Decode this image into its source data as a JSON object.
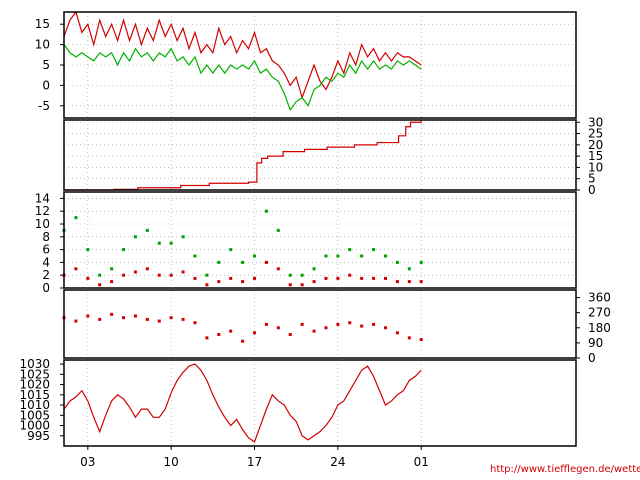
{
  "source_url": "http://www.tiefflegen.de/wetter/",
  "x_axis": {
    "range_days": [
      0,
      43
    ],
    "tick_labels": [
      "03",
      "10",
      "17",
      "24",
      "01"
    ],
    "tick_days": [
      2,
      9,
      16,
      23,
      30
    ]
  },
  "colors": {
    "red": "#d00000",
    "green": "#00b000",
    "grid": "#999999"
  },
  "chart_data": [
    {
      "type": "line",
      "ylim": [
        -8,
        18
      ],
      "y_ticks": [
        -5,
        0,
        5,
        10,
        15
      ],
      "axis_side": "left",
      "grid": true,
      "series": [
        {
          "color": "#d00000",
          "x": [
            0,
            0.5,
            1,
            1.5,
            2,
            2.5,
            3,
            3.5,
            4,
            4.5,
            5,
            5.5,
            6,
            6.5,
            7,
            7.5,
            8,
            8.5,
            9,
            9.5,
            10,
            10.5,
            11,
            11.5,
            12,
            12.5,
            13,
            13.5,
            14,
            14.5,
            15,
            15.5,
            16,
            16.5,
            17,
            17.5,
            18,
            18.5,
            19,
            19.5,
            20,
            20.5,
            21,
            21.5,
            22,
            22.5,
            23,
            23.5,
            24,
            24.5,
            25,
            25.5,
            26,
            26.5,
            27,
            27.5,
            28,
            28.5,
            29,
            29.5,
            30
          ],
          "values": [
            12,
            16,
            18,
            13,
            15,
            10,
            16,
            12,
            15,
            11,
            16,
            11,
            15,
            10,
            14,
            11,
            16,
            12,
            15,
            11,
            14,
            9,
            13,
            8,
            10,
            8,
            14,
            10,
            12,
            8,
            11,
            9,
            13,
            8,
            9,
            6,
            5,
            3,
            0,
            2,
            -3,
            1,
            5,
            1,
            -1,
            2,
            6,
            3,
            8,
            5,
            10,
            7,
            9,
            6,
            8,
            6,
            8,
            7,
            7,
            6,
            5
          ]
        },
        {
          "color": "#00b000",
          "x": [
            0,
            0.5,
            1,
            1.5,
            2,
            2.5,
            3,
            3.5,
            4,
            4.5,
            5,
            5.5,
            6,
            6.5,
            7,
            7.5,
            8,
            8.5,
            9,
            9.5,
            10,
            10.5,
            11,
            11.5,
            12,
            12.5,
            13,
            13.5,
            14,
            14.5,
            15,
            15.5,
            16,
            16.5,
            17,
            17.5,
            18,
            18.5,
            19,
            19.5,
            20,
            20.5,
            21,
            21.5,
            22,
            22.5,
            23,
            23.5,
            24,
            24.5,
            25,
            25.5,
            26,
            26.5,
            27,
            27.5,
            28,
            28.5,
            29,
            29.5,
            30
          ],
          "values": [
            10,
            8,
            7,
            8,
            7,
            6,
            8,
            7,
            8,
            5,
            8,
            6,
            9,
            7,
            8,
            6,
            8,
            7,
            9,
            6,
            7,
            5,
            7,
            3,
            5,
            3,
            5,
            3,
            5,
            4,
            5,
            4,
            6,
            3,
            4,
            2,
            1,
            -2,
            -6,
            -4,
            -3,
            -5,
            -1,
            0,
            2,
            1,
            3,
            2,
            5,
            3,
            6,
            4,
            6,
            4,
            5,
            4,
            6,
            5,
            6,
            5,
            4
          ]
        }
      ]
    },
    {
      "type": "line",
      "ylim": [
        0,
        31
      ],
      "y_ticks": [
        0,
        5,
        10,
        15,
        20,
        25,
        30
      ],
      "axis_side": "right",
      "grid": true,
      "series": [
        {
          "color": "#d00000",
          "step": true,
          "x": [
            0,
            4.2,
            6.2,
            9.8,
            12.2,
            15.5,
            16.2,
            16.6,
            17.1,
            18.4,
            20.2,
            22.1,
            24.4,
            26.3,
            28.1,
            28.7,
            29.1,
            30
          ],
          "values": [
            0,
            0.3,
            1,
            2,
            3,
            3.5,
            12,
            14,
            15,
            17,
            18,
            19,
            20,
            21,
            24,
            28,
            30,
            31
          ]
        }
      ]
    },
    {
      "type": "scatter",
      "ylim": [
        0,
        15
      ],
      "y_ticks": [
        0,
        2,
        4,
        6,
        8,
        10,
        12,
        14
      ],
      "axis_side": "left",
      "grid": true,
      "series": [
        {
          "color": "#00a000",
          "x": [
            0,
            1,
            2,
            3,
            4,
            5,
            6,
            7,
            8,
            9,
            10,
            11,
            12,
            13,
            14,
            15,
            16,
            17,
            18,
            19,
            20,
            21,
            22,
            23,
            24,
            25,
            26,
            27,
            28,
            29,
            30
          ],
          "values": [
            9,
            11,
            6,
            2,
            3,
            6,
            8,
            9,
            7,
            7,
            8,
            5,
            2,
            4,
            6,
            4,
            5,
            12,
            9,
            2,
            2,
            3,
            5,
            5,
            6,
            5,
            6,
            5,
            4,
            3,
            4
          ]
        },
        {
          "color": "#d00000",
          "x": [
            0,
            1,
            2,
            3,
            4,
            5,
            6,
            7,
            8,
            9,
            10,
            11,
            12,
            13,
            14,
            15,
            16,
            17,
            18,
            19,
            20,
            21,
            22,
            23,
            24,
            25,
            26,
            27,
            28,
            29,
            30
          ],
          "values": [
            2,
            3,
            1.5,
            0.5,
            1,
            2,
            2.5,
            3,
            2,
            2,
            2.5,
            1.5,
            0.5,
            1,
            1.5,
            1,
            1.5,
            4,
            3,
            0.5,
            0.5,
            1,
            1.5,
            1.5,
            2,
            1.5,
            1.5,
            1.5,
            1,
            1,
            1
          ]
        }
      ]
    },
    {
      "type": "scatter",
      "ylim": [
        0,
        405
      ],
      "y_ticks": [
        0,
        90,
        180,
        270,
        360
      ],
      "axis_side": "right",
      "grid": false,
      "series": [
        {
          "color": "#d00000",
          "x": [
            0,
            1,
            2,
            3,
            4,
            5,
            6,
            7,
            8,
            9,
            10,
            11,
            12,
            13,
            14,
            15,
            16,
            17,
            18,
            19,
            20,
            21,
            22,
            23,
            24,
            25,
            26,
            27,
            28,
            29,
            30
          ],
          "values": [
            240,
            220,
            250,
            230,
            260,
            240,
            250,
            230,
            220,
            240,
            230,
            210,
            120,
            140,
            160,
            100,
            150,
            200,
            180,
            140,
            200,
            160,
            180,
            200,
            210,
            190,
            200,
            180,
            150,
            120,
            110
          ]
        }
      ]
    },
    {
      "type": "line",
      "ylim": [
        990,
        1032
      ],
      "y_ticks": [
        995,
        1000,
        1005,
        1010,
        1015,
        1020,
        1025,
        1030
      ],
      "axis_side": "left",
      "grid": false,
      "series": [
        {
          "color": "#d00000",
          "x": [
            0,
            0.5,
            1,
            1.5,
            2,
            2.5,
            3,
            3.5,
            4,
            4.5,
            5,
            5.5,
            6,
            6.5,
            7,
            7.5,
            8,
            8.5,
            9,
            9.5,
            10,
            10.5,
            11,
            11.5,
            12,
            12.5,
            13,
            13.5,
            14,
            14.5,
            15,
            15.5,
            16,
            16.5,
            17,
            17.5,
            18,
            18.5,
            19,
            19.5,
            20,
            20.5,
            21,
            21.5,
            22,
            22.5,
            23,
            23.5,
            24,
            24.5,
            25,
            25.5,
            26,
            26.5,
            27,
            27.5,
            28,
            28.5,
            29,
            29.5,
            30
          ],
          "values": [
            1008,
            1012,
            1014,
            1017,
            1012,
            1004,
            997,
            1005,
            1012,
            1015,
            1013,
            1009,
            1004,
            1008,
            1008,
            1004,
            1004,
            1008,
            1016,
            1022,
            1026,
            1029,
            1030,
            1027,
            1022,
            1015,
            1009,
            1004,
            1000,
            1003,
            998,
            994,
            992,
            1000,
            1008,
            1015,
            1012,
            1010,
            1005,
            1002,
            995,
            993,
            995,
            997,
            1000,
            1004,
            1010,
            1012,
            1017,
            1022,
            1027,
            1029,
            1024,
            1017,
            1010,
            1012,
            1015,
            1017,
            1022,
            1024,
            1027
          ]
        }
      ]
    }
  ]
}
